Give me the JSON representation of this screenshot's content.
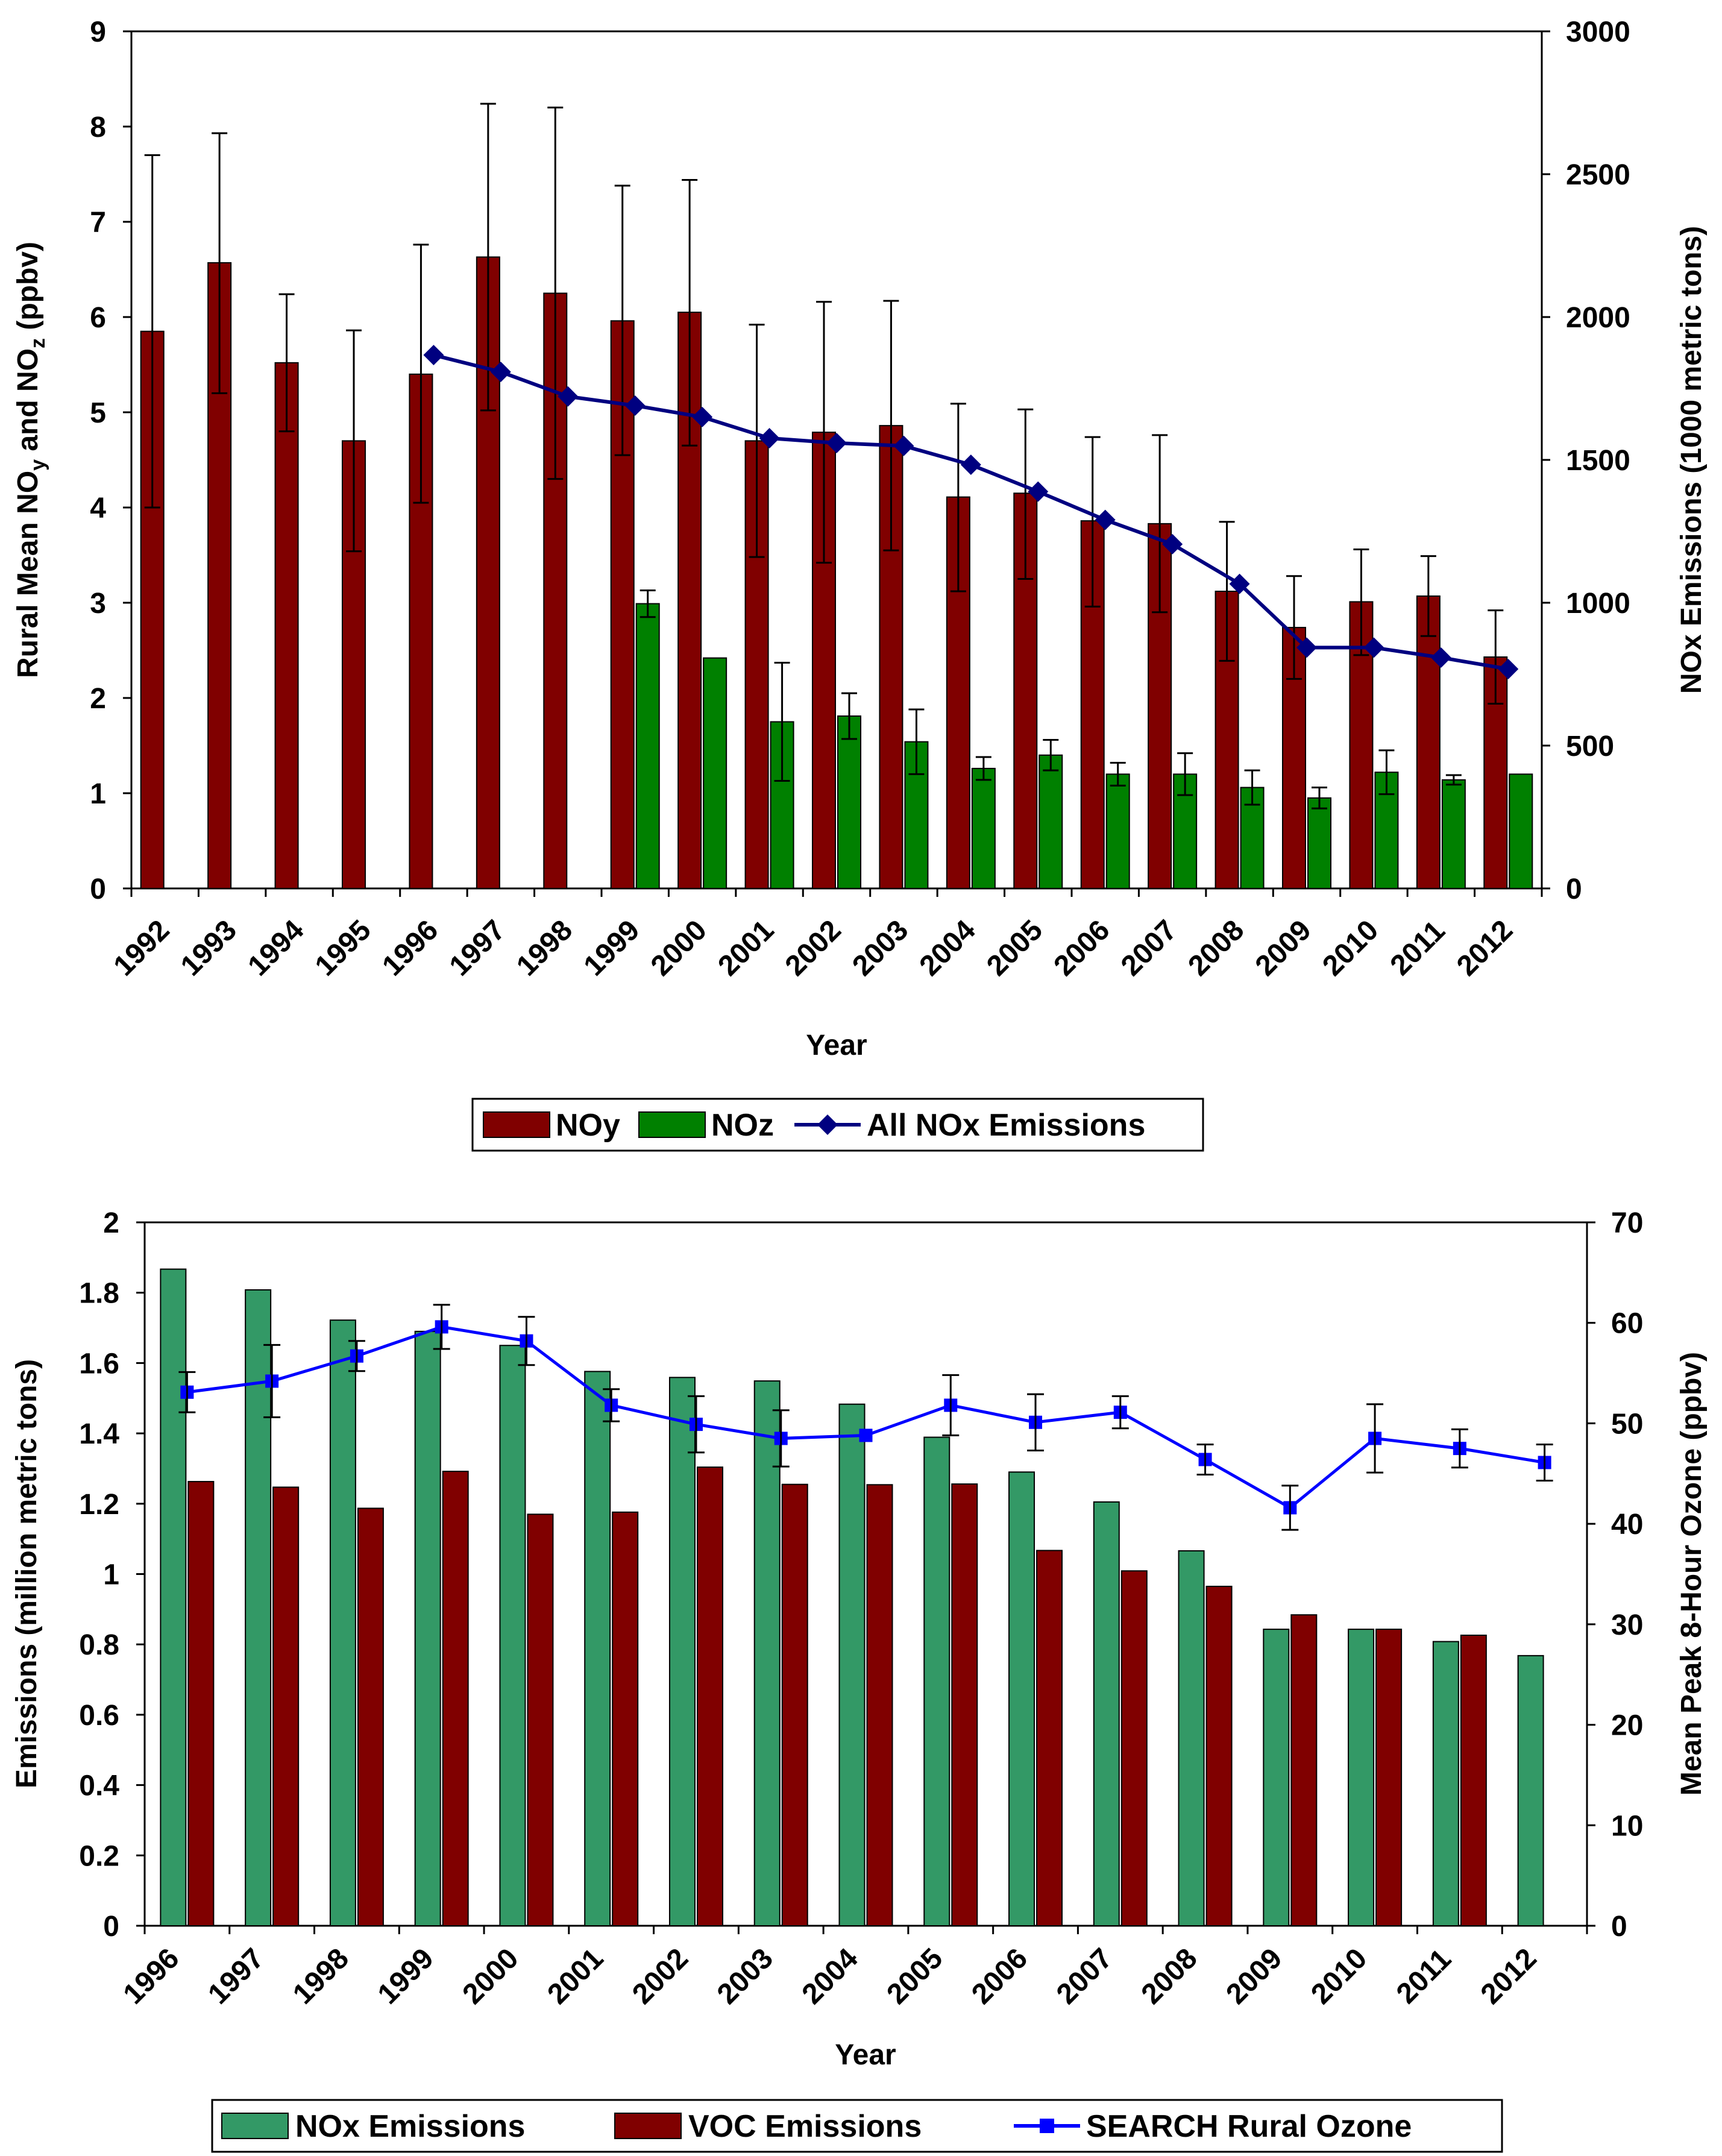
{
  "chart_data": [
    {
      "type": "bar",
      "xlabel": "Year",
      "ylabel": "Rural Mean NOy and NOz (ppbv)",
      "y2label": "NOx Emissions (1000 metric tons)",
      "ylim": [
        0,
        9
      ],
      "y2lim": [
        0,
        3000
      ],
      "yticks": [
        "0",
        "1",
        "2",
        "3",
        "4",
        "5",
        "6",
        "7",
        "8",
        "9"
      ],
      "y2ticks": [
        "0",
        "500",
        "1000",
        "1500",
        "2000",
        "2500",
        "3000"
      ],
      "categories": [
        "1992",
        "1993",
        "1994",
        "1995",
        "1996",
        "1997",
        "1998",
        "1999",
        "2000",
        "2001",
        "2002",
        "2003",
        "2004",
        "2005",
        "2006",
        "2007",
        "2008",
        "2009",
        "2010",
        "2011",
        "2012"
      ],
      "series": [
        {
          "name": "NOy",
          "type": "bar",
          "axis": "left",
          "color": "#800000",
          "values": [
            5.85,
            6.57,
            5.52,
            4.7,
            5.4,
            6.63,
            6.25,
            5.96,
            6.05,
            4.7,
            4.79,
            4.86,
            4.11,
            4.15,
            3.86,
            3.83,
            3.12,
            2.74,
            3.01,
            3.07,
            2.43
          ],
          "err_high": [
            7.7,
            7.93,
            6.24,
            5.86,
            6.76,
            8.24,
            8.2,
            7.38,
            7.44,
            5.92,
            6.16,
            6.17,
            5.09,
            5.03,
            4.74,
            4.76,
            3.85,
            3.28,
            3.56,
            3.49,
            2.92
          ],
          "err_low": [
            4.0,
            5.2,
            4.8,
            3.54,
            4.05,
            5.02,
            4.3,
            4.55,
            4.65,
            3.48,
            3.42,
            3.55,
            3.12,
            3.25,
            2.96,
            2.9,
            2.39,
            2.2,
            2.45,
            2.65,
            1.94
          ]
        },
        {
          "name": "NOz",
          "type": "bar",
          "axis": "left",
          "color": "#008000",
          "values": [
            null,
            null,
            null,
            null,
            null,
            null,
            null,
            2.99,
            2.42,
            1.75,
            1.81,
            1.54,
            1.26,
            1.4,
            1.2,
            1.2,
            1.06,
            0.95,
            1.22,
            1.14,
            1.2
          ],
          "err_high": [
            null,
            null,
            null,
            null,
            null,
            null,
            null,
            3.13,
            null,
            2.37,
            2.05,
            1.88,
            1.38,
            1.56,
            1.32,
            1.42,
            1.24,
            1.06,
            1.45,
            1.19,
            null
          ],
          "err_low": [
            null,
            null,
            null,
            null,
            null,
            null,
            null,
            2.85,
            null,
            1.13,
            1.57,
            1.2,
            1.14,
            1.24,
            1.08,
            0.98,
            0.88,
            0.84,
            0.99,
            1.09,
            null
          ]
        },
        {
          "name": "All NOx Emissions",
          "type": "line",
          "axis": "right",
          "color": "#000080",
          "values": [
            null,
            null,
            null,
            null,
            1867,
            1808,
            1722,
            1690,
            1650,
            1576,
            1559,
            1549,
            1483,
            1389,
            1290,
            1205,
            1066,
            843,
            843,
            808,
            768
          ]
        }
      ],
      "legend": [
        "NOy",
        "NOz",
        "All NOx Emissions"
      ],
      "legend_position": "bottom"
    },
    {
      "type": "bar",
      "xlabel": "Year",
      "ylabel": "Emissions (million metric tons)",
      "y2label": "Mean Peak 8-Hour Ozone (ppbv)",
      "ylim": [
        0,
        2
      ],
      "y2lim": [
        0,
        70
      ],
      "yticks": [
        "0",
        "0.2",
        "0.4",
        "0.6",
        "0.8",
        "1",
        "1.2",
        "1.4",
        "1.6",
        "1.8",
        "2"
      ],
      "y2ticks": [
        "0",
        "10",
        "20",
        "30",
        "40",
        "50",
        "60",
        "70"
      ],
      "categories": [
        "1996",
        "1997",
        "1998",
        "1999",
        "2000",
        "2001",
        "2002",
        "2003",
        "2004",
        "2005",
        "2006",
        "2007",
        "2008",
        "2009",
        "2010",
        "2011",
        "2012"
      ],
      "series": [
        {
          "name": "NOx Emissions",
          "type": "bar",
          "axis": "left",
          "color": "#339966",
          "values": [
            1.867,
            1.808,
            1.722,
            1.69,
            1.65,
            1.576,
            1.559,
            1.549,
            1.483,
            1.389,
            1.29,
            1.205,
            1.066,
            0.843,
            0.843,
            0.808,
            0.768
          ]
        },
        {
          "name": "VOC Emissions",
          "type": "bar",
          "axis": "left",
          "color": "#800000",
          "values": [
            1.263,
            1.247,
            1.187,
            1.292,
            1.17,
            1.176,
            1.304,
            1.255,
            1.254,
            1.256,
            1.067,
            1.009,
            0.965,
            0.884,
            0.843,
            0.826,
            null
          ]
        },
        {
          "name": "SEARCH Rural Ozone",
          "type": "line",
          "axis": "right",
          "color": "#0000ff",
          "values": [
            53.1,
            54.2,
            56.7,
            59.6,
            58.2,
            51.8,
            49.9,
            48.5,
            48.8,
            51.8,
            50.1,
            51.1,
            46.4,
            41.6,
            48.5,
            47.5,
            46.1
          ],
          "err_high": [
            55.1,
            57.8,
            58.2,
            61.8,
            60.6,
            53.4,
            52.7,
            51.3,
            null,
            54.8,
            52.9,
            52.7,
            47.9,
            43.8,
            51.9,
            49.4,
            47.9
          ],
          "err_low": [
            51.1,
            50.6,
            55.2,
            57.4,
            55.8,
            50.2,
            47.1,
            45.7,
            null,
            48.8,
            47.3,
            49.5,
            44.9,
            39.4,
            45.1,
            45.6,
            44.3
          ]
        }
      ],
      "legend": [
        "NOx Emissions",
        "VOC Emissions",
        "SEARCH Rural Ozone"
      ],
      "legend_position": "bottom"
    }
  ]
}
